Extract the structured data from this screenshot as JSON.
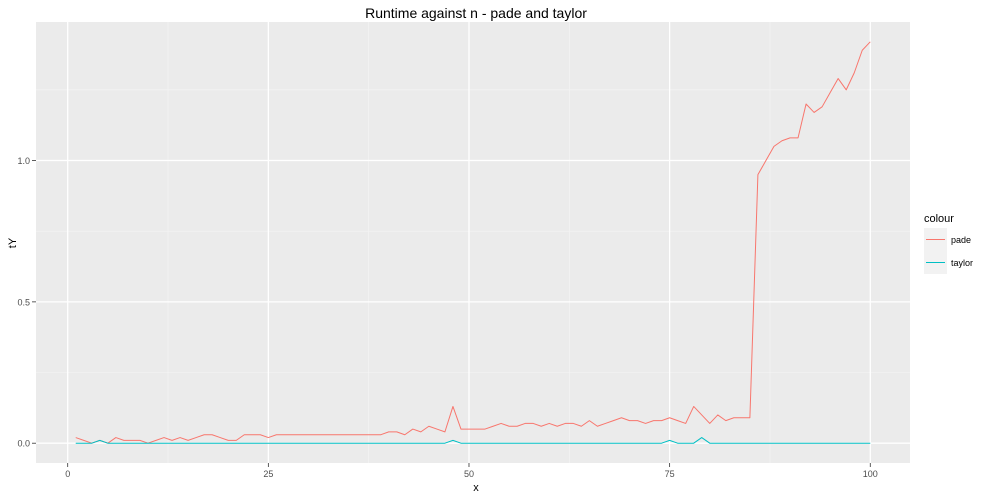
{
  "chart_data": {
    "type": "line",
    "title": "Runtime against n - pade and taylor",
    "xlabel": "x",
    "ylabel": "tY",
    "xlim": [
      -3.95,
      104.95
    ],
    "ylim": [
      -0.07,
      1.49
    ],
    "x_ticks": [
      0,
      25,
      50,
      75,
      100
    ],
    "x_tick_labels": [
      "0",
      "25",
      "50",
      "75",
      "100"
    ],
    "y_ticks": [
      0.0,
      0.5,
      1.0
    ],
    "y_tick_labels": [
      "0.0",
      "0.5",
      "1.0"
    ],
    "grid": true,
    "legend_title": "colour",
    "legend_placement": "right",
    "x": [
      1,
      2,
      3,
      4,
      5,
      6,
      7,
      8,
      9,
      10,
      11,
      12,
      13,
      14,
      15,
      16,
      17,
      18,
      19,
      20,
      21,
      22,
      23,
      24,
      25,
      26,
      27,
      28,
      29,
      30,
      31,
      32,
      33,
      34,
      35,
      36,
      37,
      38,
      39,
      40,
      41,
      42,
      43,
      44,
      45,
      46,
      47,
      48,
      49,
      50,
      51,
      52,
      53,
      54,
      55,
      56,
      57,
      58,
      59,
      60,
      61,
      62,
      63,
      64,
      65,
      66,
      67,
      68,
      69,
      70,
      71,
      72,
      73,
      74,
      75,
      76,
      77,
      78,
      79,
      80,
      81,
      82,
      83,
      84,
      85,
      86,
      87,
      88,
      89,
      90,
      91,
      92,
      93,
      94,
      95,
      96,
      97,
      98,
      99,
      100
    ],
    "series": [
      {
        "name": "pade",
        "color": "#F8766D",
        "values": [
          0.02,
          0.01,
          0,
          0.01,
          0,
          0.02,
          0.01,
          0.01,
          0.01,
          0,
          0.01,
          0.02,
          0.01,
          0.02,
          0.01,
          0.02,
          0.03,
          0.03,
          0.02,
          0.01,
          0.01,
          0.03,
          0.03,
          0.03,
          0.02,
          0.03,
          0.03,
          0.03,
          0.03,
          0.03,
          0.03,
          0.03,
          0.03,
          0.03,
          0.03,
          0.03,
          0.03,
          0.03,
          0.03,
          0.04,
          0.04,
          0.03,
          0.05,
          0.04,
          0.06,
          0.05,
          0.04,
          0.13,
          0.05,
          0.05,
          0.05,
          0.05,
          0.06,
          0.07,
          0.06,
          0.06,
          0.07,
          0.07,
          0.06,
          0.07,
          0.06,
          0.07,
          0.07,
          0.06,
          0.08,
          0.06,
          0.07,
          0.08,
          0.09,
          0.08,
          0.08,
          0.07,
          0.08,
          0.08,
          0.09,
          0.08,
          0.07,
          0.13,
          0.1,
          0.07,
          0.1,
          0.08,
          0.09,
          0.09,
          0.09,
          0.95,
          1,
          1.05,
          1.07,
          1.08,
          1.08,
          1.2,
          1.17,
          1.19,
          1.24,
          1.29,
          1.25,
          1.31,
          1.39,
          1.42
        ]
      },
      {
        "name": "taylor",
        "color": "#00BFC4",
        "values": [
          0,
          0,
          0,
          0.01,
          0,
          0,
          0,
          0,
          0,
          0,
          0,
          0,
          0,
          0,
          0,
          0,
          0,
          0,
          0,
          0,
          0,
          0,
          0,
          0,
          0,
          0,
          0,
          0,
          0,
          0,
          0,
          0,
          0,
          0,
          0,
          0,
          0,
          0,
          0,
          0,
          0,
          0,
          0,
          0,
          0,
          0,
          0,
          0.01,
          0,
          0,
          0,
          0,
          0,
          0,
          0,
          0,
          0,
          0,
          0,
          0,
          0,
          0,
          0,
          0,
          0,
          0,
          0,
          0,
          0,
          0,
          0,
          0,
          0,
          0,
          0.01,
          0,
          0,
          0,
          0.02,
          0,
          0,
          0,
          0,
          0,
          0,
          0,
          0,
          0,
          0,
          0,
          0,
          0,
          0,
          0,
          0,
          0,
          0,
          0,
          0,
          0
        ]
      }
    ]
  }
}
